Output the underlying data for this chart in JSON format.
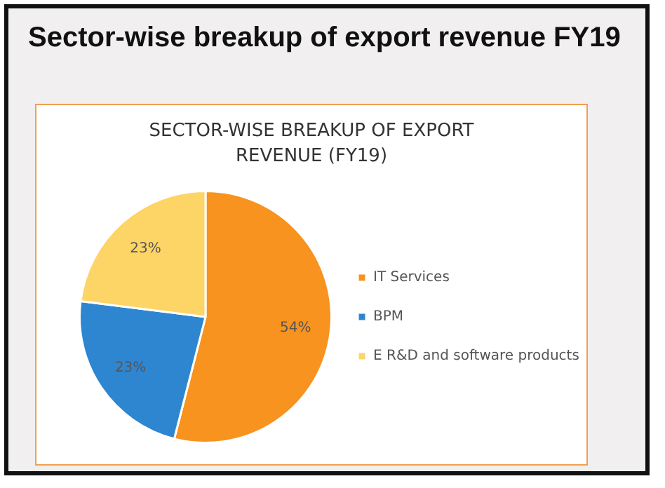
{
  "chart_data": {
    "type": "pie",
    "title": "Sector-wise breakup of export revenue FY19",
    "subtitle": "SECTOR-WISE BREAKUP OF EXPORT\nREVENUE (FY19)",
    "categories": [
      "IT Services",
      "BPM",
      "E R&D and software products"
    ],
    "values": [
      54,
      23,
      23
    ],
    "colors": [
      "#f7931e",
      "#2e86d1",
      "#fdd466"
    ],
    "value_labels": [
      "54%",
      "23%",
      "23%"
    ],
    "legend": "right"
  }
}
